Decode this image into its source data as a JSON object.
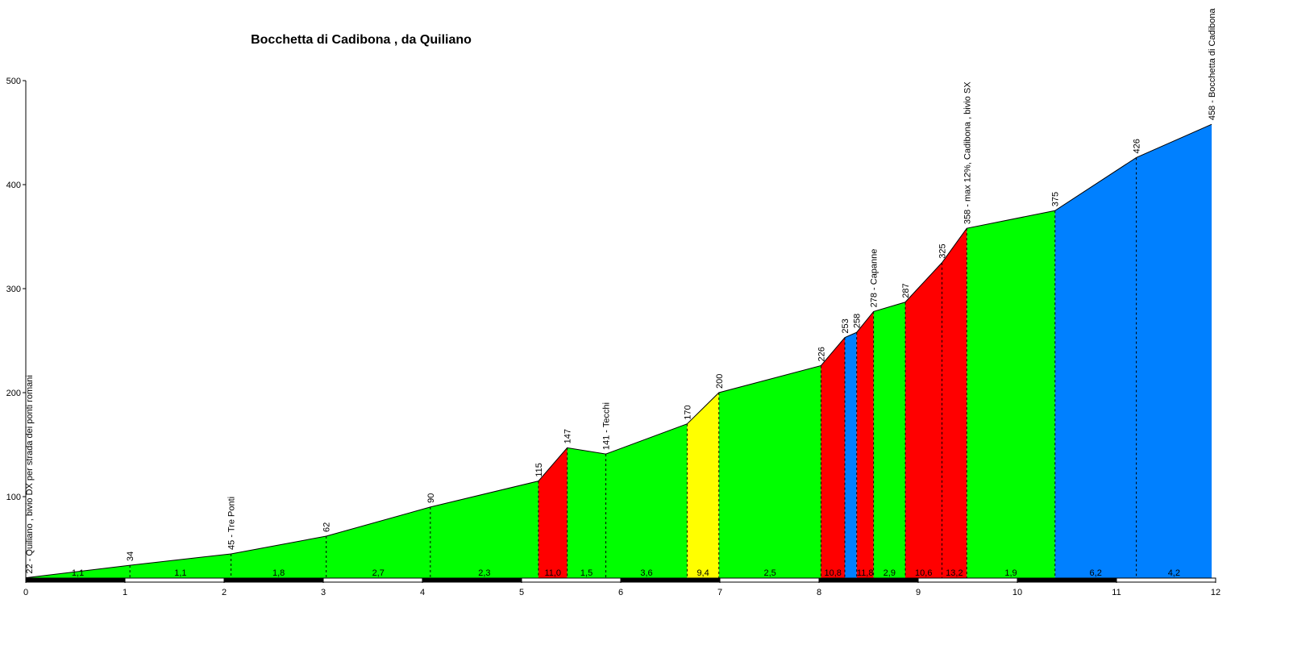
{
  "chart_data": {
    "type": "area",
    "title": "Bocchetta di Cadibona , da Quiliano",
    "xlim": [
      0,
      12
    ],
    "ylim": [
      20,
      500
    ],
    "x_ticks": [
      "0",
      "1",
      "2",
      "3",
      "4",
      "5",
      "6",
      "7",
      "8",
      "9",
      "10",
      "11",
      "12"
    ],
    "y_ticks": [
      {
        "value": 100,
        "label": "100"
      },
      {
        "value": 200,
        "label": "200"
      },
      {
        "value": 300,
        "label": "300"
      },
      {
        "value": 400,
        "label": "400"
      },
      {
        "value": 500,
        "label": "500"
      }
    ],
    "points": [
      {
        "x": 0.0,
        "y": 22,
        "label": "22 - Quiliano , bivio DX per strada dei ponti romani"
      },
      {
        "x": 1.05,
        "y": 34,
        "label": "34"
      },
      {
        "x": 2.07,
        "y": 45,
        "label": "45 - Tre Ponti"
      },
      {
        "x": 3.03,
        "y": 62,
        "label": "62"
      },
      {
        "x": 4.08,
        "y": 90,
        "label": "90"
      },
      {
        "x": 5.17,
        "y": 115,
        "label": "115"
      },
      {
        "x": 5.46,
        "y": 147,
        "label": "147"
      },
      {
        "x": 5.85,
        "y": 141,
        "label": "141 - Tecchi"
      },
      {
        "x": 6.67,
        "y": 170,
        "label": "170"
      },
      {
        "x": 6.99,
        "y": 200,
        "label": "200"
      },
      {
        "x": 8.02,
        "y": 226,
        "label": "226"
      },
      {
        "x": 8.26,
        "y": 253,
        "label": "253"
      },
      {
        "x": 8.38,
        "y": 258,
        "label": "258"
      },
      {
        "x": 8.55,
        "y": 278,
        "label": "278 - Capanne"
      },
      {
        "x": 8.87,
        "y": 287,
        "label": "287"
      },
      {
        "x": 9.24,
        "y": 325,
        "label": "325"
      },
      {
        "x": 9.49,
        "y": 358,
        "label": "358 - max 12%, Cadibona , bivio SX"
      },
      {
        "x": 10.38,
        "y": 375,
        "label": "375"
      },
      {
        "x": 11.2,
        "y": 426,
        "label": "426"
      },
      {
        "x": 11.96,
        "y": 458,
        "label": "458 - Bocchetta di Cadibona"
      }
    ],
    "segments": [
      {
        "gradient": "1,1",
        "color": "#00ff00"
      },
      {
        "gradient": "1,1",
        "color": "#00ff00"
      },
      {
        "gradient": "1,8",
        "color": "#00ff00"
      },
      {
        "gradient": "2,7",
        "color": "#00ff00"
      },
      {
        "gradient": "2,3",
        "color": "#00ff00"
      },
      {
        "gradient": "11,0",
        "color": "#ff0000"
      },
      {
        "gradient": "1,5",
        "color": "#00ff00"
      },
      {
        "gradient": "3,6",
        "color": "#00ff00"
      },
      {
        "gradient": "9,4",
        "color": "#ffff00"
      },
      {
        "gradient": "2,5",
        "color": "#00ff00"
      },
      {
        "gradient": "10,8",
        "color": "#ff0000"
      },
      {
        "gradient": "",
        "color": "#0080ff"
      },
      {
        "gradient": "11,8",
        "color": "#ff0000"
      },
      {
        "gradient": "2,9",
        "color": "#00ff00"
      },
      {
        "gradient": "10,6",
        "color": "#ff0000"
      },
      {
        "gradient": "13,2",
        "color": "#ff0000"
      },
      {
        "gradient": "1,9",
        "color": "#00ff00"
      },
      {
        "gradient": "6,2",
        "color": "#0080ff"
      },
      {
        "gradient": "4,2",
        "color": "#0080ff"
      }
    ]
  }
}
